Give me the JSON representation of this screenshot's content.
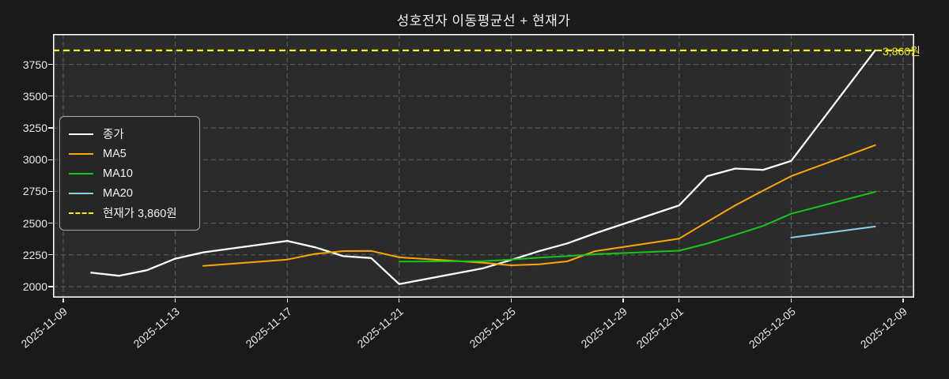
{
  "title": "성호전자 이동평균선 + 현재가",
  "current_price": {
    "value": 3860,
    "label": "3,860원",
    "color": "#f4f400"
  },
  "legend": {
    "position": "upper-left",
    "items": [
      {
        "label": "종가",
        "color": "#ffffff",
        "dashed": false
      },
      {
        "label": "MA5",
        "color": "#ffa500",
        "dashed": false
      },
      {
        "label": "MA10",
        "color": "#14c714",
        "dashed": false
      },
      {
        "label": "MA20",
        "color": "#8ccfe8",
        "dashed": false
      },
      {
        "label": "현재가 3,860원",
        "color": "#f4f400",
        "dashed": true
      }
    ]
  },
  "chart_data": {
    "type": "line",
    "title": "성호전자 이동평균선 + 현재가",
    "grid": true,
    "background": "dark",
    "x_axis": {
      "unit": "date",
      "origin_date": "2025-11-09",
      "tick_labels": [
        "2025-11-09",
        "2025-11-13",
        "2025-11-17",
        "2025-11-21",
        "2025-11-25",
        "2025-11-29",
        "2025-12-01",
        "2025-12-05",
        "2025-12-09"
      ],
      "tick_day_offsets": [
        0,
        4,
        8,
        12,
        16,
        20,
        22,
        26,
        30
      ],
      "xlim_day_offsets": [
        -0.4,
        30.4
      ]
    },
    "y_axis": {
      "tick_labels": [
        "2000",
        "2250",
        "2500",
        "2750",
        "3000",
        "3250",
        "3500",
        "3750"
      ],
      "ticks": [
        2000,
        2250,
        2500,
        2750,
        3000,
        3250,
        3500,
        3750
      ],
      "ylim": [
        1913,
        3990
      ]
    },
    "series": [
      {
        "name": "종가",
        "color": "#ffffff",
        "width": 2.3,
        "dashed": false,
        "dates": [
          "2025-11-10",
          "2025-11-11",
          "2025-11-12",
          "2025-11-13",
          "2025-11-14",
          "2025-11-17",
          "2025-11-18",
          "2025-11-19",
          "2025-11-20",
          "2025-11-21",
          "2025-11-24",
          "2025-11-25",
          "2025-11-26",
          "2025-11-27",
          "2025-11-28",
          "2025-12-01",
          "2025-12-02",
          "2025-12-03",
          "2025-12-04",
          "2025-12-05",
          "2025-12-08"
        ],
        "day_offsets": [
          1,
          2,
          3,
          4,
          5,
          8,
          9,
          10,
          11,
          12,
          15,
          16,
          17,
          18,
          19,
          22,
          23,
          24,
          25,
          26,
          29
        ],
        "values": [
          2110,
          2085,
          2130,
          2220,
          2270,
          2360,
          2310,
          2240,
          2225,
          2020,
          2145,
          2210,
          2280,
          2340,
          2420,
          2640,
          2870,
          2930,
          2920,
          2990,
          3860
        ]
      },
      {
        "name": "MA5",
        "color": "#ffa500",
        "width": 2,
        "dashed": false,
        "dates": [
          "2025-11-14",
          "2025-11-17",
          "2025-11-18",
          "2025-11-19",
          "2025-11-20",
          "2025-11-21",
          "2025-11-24",
          "2025-11-25",
          "2025-11-26",
          "2025-11-27",
          "2025-11-28",
          "2025-12-01",
          "2025-12-02",
          "2025-12-03",
          "2025-12-04",
          "2025-12-05",
          "2025-12-08"
        ],
        "day_offsets": [
          5,
          8,
          9,
          10,
          11,
          12,
          15,
          16,
          17,
          18,
          19,
          22,
          23,
          24,
          25,
          26,
          29
        ],
        "values": [
          2163,
          2213,
          2258,
          2280,
          2281,
          2231,
          2188,
          2168,
          2176,
          2199,
          2279,
          2378,
          2510,
          2640,
          2756,
          2870,
          3114
        ]
      },
      {
        "name": "MA10",
        "color": "#14c714",
        "width": 2,
        "dashed": false,
        "dates": [
          "2025-11-21",
          "2025-11-24",
          "2025-11-25",
          "2025-11-26",
          "2025-11-27",
          "2025-11-28",
          "2025-12-01",
          "2025-12-02",
          "2025-12-03",
          "2025-12-04",
          "2025-12-05",
          "2025-12-08"
        ],
        "day_offsets": [
          12,
          15,
          16,
          17,
          18,
          19,
          22,
          23,
          24,
          25,
          26,
          29
        ],
        "values": [
          2197,
          2200,
          2213,
          2228,
          2240,
          2255,
          2283,
          2339,
          2408,
          2478,
          2574,
          2746
        ]
      },
      {
        "name": "MA20",
        "color": "#8ccfe8",
        "width": 2,
        "dashed": false,
        "dates": [
          "2025-12-05",
          "2025-12-08"
        ],
        "day_offsets": [
          26,
          29
        ],
        "values": [
          2386,
          2473
        ]
      }
    ],
    "reference_line": {
      "name": "현재가",
      "value": 3860,
      "color": "#f4f400",
      "dashed": true,
      "label": "3,860원"
    }
  }
}
